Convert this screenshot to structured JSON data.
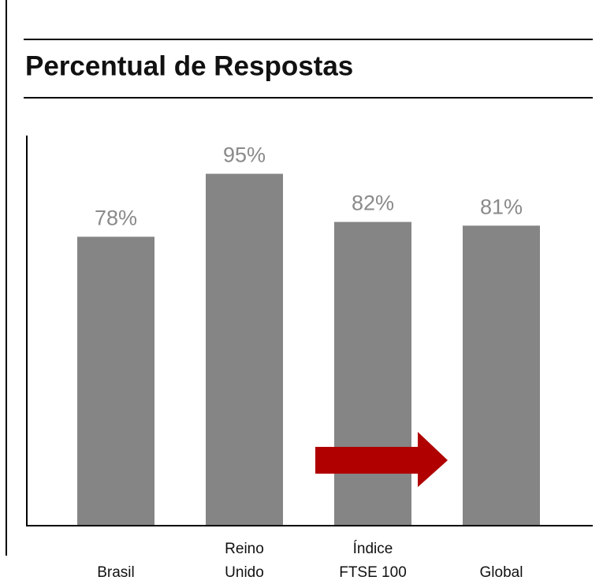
{
  "chart_data": {
    "type": "bar",
    "title": "Percentual de Respostas",
    "categories": [
      [
        "Brasil"
      ],
      [
        "Reino",
        "Unido"
      ],
      [
        "Índice",
        "FTSE 100"
      ],
      [
        "Global"
      ]
    ],
    "values": [
      78,
      95,
      82,
      81
    ],
    "value_labels": [
      "78%",
      "95%",
      "82%",
      "81%"
    ],
    "color": "#858585",
    "ylim": [
      0,
      100
    ]
  }
}
